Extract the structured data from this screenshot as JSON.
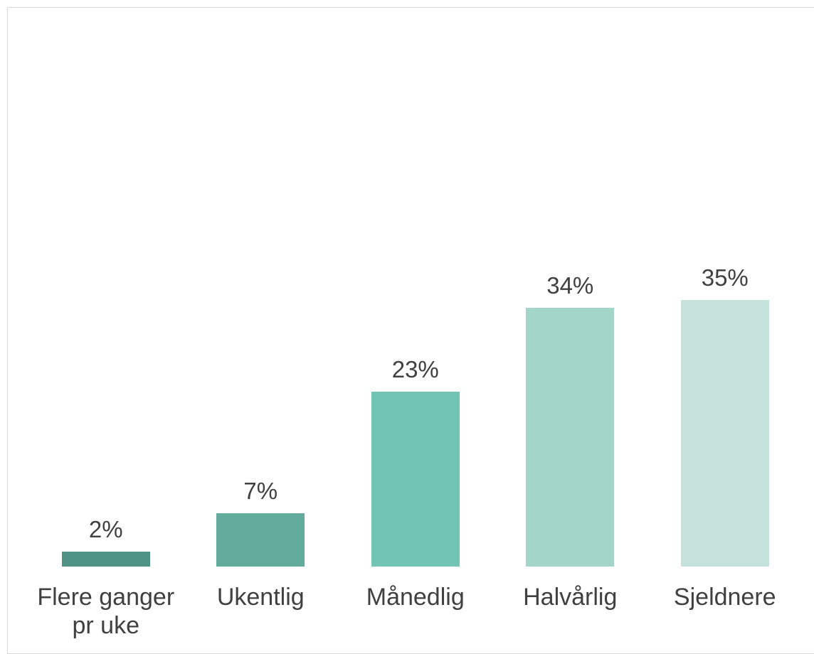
{
  "chart_data": {
    "type": "bar",
    "categories": [
      "Flere ganger pr uke",
      "Ukentlig",
      "Månedlig",
      "Halvårlig",
      "Sjeldnere"
    ],
    "values": [
      2,
      7,
      23,
      34,
      35
    ],
    "value_labels": [
      "2%",
      "7%",
      "23%",
      "34%",
      "35%"
    ],
    "colors": [
      "#4e9386",
      "#62ab9d",
      "#72c4b5",
      "#a4d5c9",
      "#c5e3db"
    ]
  }
}
